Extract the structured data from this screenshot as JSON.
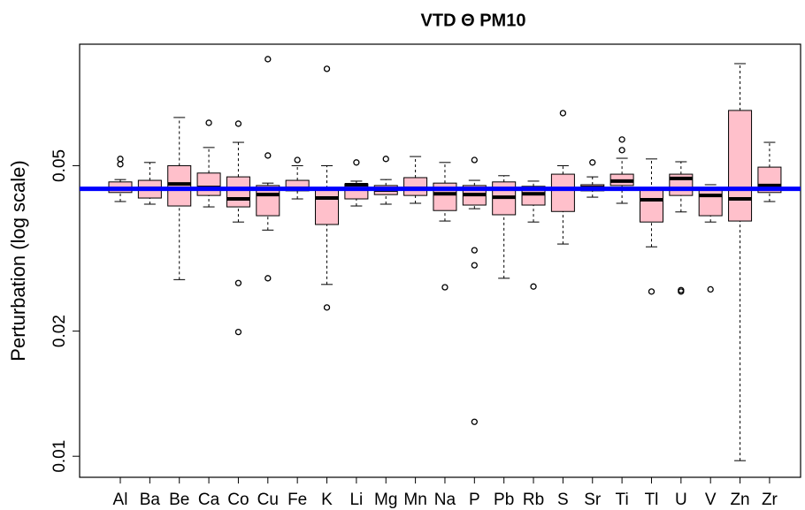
{
  "chart_data": {
    "type": "boxplot",
    "title": "VTD Θ PM10",
    "y_label": "Perturbation (log scale)",
    "yscale": "log",
    "ylim": [
      0.0089,
      0.098
    ],
    "yticks": [
      0.01,
      0.02,
      0.05
    ],
    "box_color": "#ffc0cb",
    "hline": 0.044,
    "hline_color": "#0000ff",
    "categories": [
      "Al",
      "Ba",
      "Be",
      "Ca",
      "Co",
      "Cu",
      "Fe",
      "K",
      "Li",
      "Mg",
      "Mn",
      "Na",
      "P",
      "Pb",
      "Rb",
      "S",
      "Sr",
      "Ti",
      "Tl",
      "U",
      "V",
      "Zn",
      "Zr"
    ],
    "boxes": [
      {
        "whislo": 0.041,
        "q1": 0.0431,
        "med": 0.0439,
        "q3": 0.0457,
        "whishi": 0.0463,
        "fliers": [
          0.0519,
          0.0504
        ]
      },
      {
        "whislo": 0.0404,
        "q1": 0.0418,
        "med": 0.0441,
        "q3": 0.0461,
        "whishi": 0.0509,
        "fliers": []
      },
      {
        "whislo": 0.0266,
        "q1": 0.04,
        "med": 0.0452,
        "q3": 0.05,
        "whishi": 0.0653,
        "fliers": []
      },
      {
        "whislo": 0.0398,
        "q1": 0.0424,
        "med": 0.0443,
        "q3": 0.048,
        "whishi": 0.0553,
        "fliers": [
          0.0634
        ]
      },
      {
        "whislo": 0.0366,
        "q1": 0.0398,
        "med": 0.0416,
        "q3": 0.047,
        "whishi": 0.0569,
        "fliers": [
          0.0631,
          0.0261,
          0.0199
        ]
      },
      {
        "whislo": 0.035,
        "q1": 0.0379,
        "med": 0.0426,
        "q3": 0.0448,
        "whishi": 0.0454,
        "fliers": [
          0.0902,
          0.0529,
          0.0268
        ]
      },
      {
        "whislo": 0.0416,
        "q1": 0.0435,
        "med": 0.0441,
        "q3": 0.0461,
        "whishi": 0.05,
        "fliers": [
          0.0516
        ]
      },
      {
        "whislo": 0.0259,
        "q1": 0.0361,
        "med": 0.0418,
        "q3": 0.0441,
        "whishi": 0.05,
        "fliers": [
          0.0855,
          0.0228
        ]
      },
      {
        "whislo": 0.04,
        "q1": 0.0416,
        "med": 0.045,
        "q3": 0.0452,
        "whishi": 0.0459,
        "fliers": [
          0.0509
        ]
      },
      {
        "whislo": 0.0404,
        "q1": 0.0426,
        "med": 0.0437,
        "q3": 0.0448,
        "whishi": 0.0463,
        "fliers": [
          0.0519
        ]
      },
      {
        "whislo": 0.0406,
        "q1": 0.0424,
        "med": 0.0441,
        "q3": 0.0468,
        "whishi": 0.0526,
        "fliers": []
      },
      {
        "whislo": 0.0368,
        "q1": 0.039,
        "med": 0.0428,
        "q3": 0.0454,
        "whishi": 0.0509,
        "fliers": [
          0.0255
        ]
      },
      {
        "whislo": 0.0394,
        "q1": 0.0402,
        "med": 0.0426,
        "q3": 0.0448,
        "whishi": 0.0461,
        "fliers": [
          0.0516,
          0.0313,
          0.0288,
          0.0121
        ]
      },
      {
        "whislo": 0.0268,
        "q1": 0.0381,
        "med": 0.042,
        "q3": 0.0457,
        "whishi": 0.0473,
        "fliers": []
      },
      {
        "whislo": 0.0366,
        "q1": 0.0402,
        "med": 0.0428,
        "q3": 0.0446,
        "whishi": 0.0459,
        "fliers": [
          0.0256
        ]
      },
      {
        "whislo": 0.0324,
        "q1": 0.0388,
        "med": 0.0439,
        "q3": 0.0477,
        "whishi": 0.05,
        "fliers": [
          0.0669
        ]
      },
      {
        "whislo": 0.042,
        "q1": 0.0435,
        "med": 0.0443,
        "q3": 0.045,
        "whishi": 0.047,
        "fliers": [
          0.0509
        ]
      },
      {
        "whislo": 0.0406,
        "q1": 0.0448,
        "med": 0.0459,
        "q3": 0.0477,
        "whishi": 0.0521,
        "fliers": [
          0.0578,
          0.0545
        ]
      },
      {
        "whislo": 0.0319,
        "q1": 0.0366,
        "med": 0.0414,
        "q3": 0.0437,
        "whishi": 0.0519,
        "fliers": [
          0.0249
        ]
      },
      {
        "whislo": 0.0387,
        "q1": 0.0424,
        "med": 0.0466,
        "q3": 0.0477,
        "whishi": 0.0511,
        "fliers": [
          0.0251,
          0.0249
        ]
      },
      {
        "whislo": 0.0366,
        "q1": 0.0379,
        "med": 0.0424,
        "q3": 0.0437,
        "whishi": 0.045,
        "fliers": [
          0.0252
        ]
      },
      {
        "whislo": 0.00976,
        "q1": 0.0368,
        "med": 0.0416,
        "q3": 0.0679,
        "whishi": 0.088,
        "fliers": []
      },
      {
        "whislo": 0.041,
        "q1": 0.0431,
        "med": 0.0448,
        "q3": 0.0496,
        "whishi": 0.0569,
        "fliers": []
      }
    ]
  }
}
